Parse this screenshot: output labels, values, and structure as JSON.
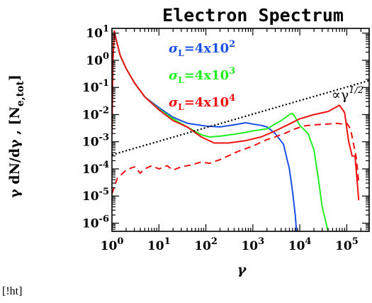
{
  "caption": "[!ht]",
  "chart_data": {
    "type": "line",
    "title": "Electron Spectrum",
    "xlabel": "γ",
    "ylabel": "γ dN/dγ , [N",
    "ylabel_sub": "e,tot",
    "ylabel_close": "]",
    "xscale": "log",
    "yscale": "log",
    "xlim": [
      1,
      300000
    ],
    "ylim": [
      5e-07,
      15
    ],
    "x_ticks": [
      {
        "value": 1,
        "mantissa": "10",
        "exp": "0"
      },
      {
        "value": 10,
        "mantissa": "10",
        "exp": "1"
      },
      {
        "value": 100,
        "mantissa": "10",
        "exp": "2"
      },
      {
        "value": 1000,
        "mantissa": "10",
        "exp": "3"
      },
      {
        "value": 10000,
        "mantissa": "10",
        "exp": "4"
      },
      {
        "value": 100000,
        "mantissa": "10",
        "exp": "5"
      }
    ],
    "y_ticks": [
      {
        "value": 10,
        "mantissa": "10",
        "exp": "1"
      },
      {
        "value": 1,
        "mantissa": "10",
        "exp": "0"
      },
      {
        "value": 0.1,
        "mantissa": "10",
        "exp": "-1"
      },
      {
        "value": 0.01,
        "mantissa": "10",
        "exp": "-2"
      },
      {
        "value": 0.001,
        "mantissa": "10",
        "exp": "-3"
      },
      {
        "value": 0.0001,
        "mantissa": "10",
        "exp": "-4"
      },
      {
        "value": 1e-05,
        "mantissa": "10",
        "exp": "-5"
      },
      {
        "value": 1e-06,
        "mantissa": "10",
        "exp": "-6"
      }
    ],
    "legend": [
      {
        "label": "σ",
        "sub": "L",
        "text": "=4x10",
        "exp": "2",
        "color": "#1a50e6"
      },
      {
        "label": "σ",
        "sub": "L",
        "text": "=4x10",
        "exp": "3",
        "color": "#22ee22"
      },
      {
        "label": "σ",
        "sub": "L",
        "text": "=4x10",
        "exp": "4",
        "color": "#ee1111"
      }
    ],
    "annotation": {
      "text": "∝γ",
      "exp": "1/2"
    },
    "series": [
      {
        "color": "#1a50e6",
        "style": "solid",
        "points": [
          [
            1,
            0.002
          ],
          [
            1.05,
            1
          ],
          [
            1.12,
            12
          ],
          [
            1.2,
            7
          ],
          [
            1.5,
            1.5
          ],
          [
            2,
            0.5
          ],
          [
            3,
            0.15
          ],
          [
            5,
            0.045
          ],
          [
            10,
            0.018
          ],
          [
            20,
            0.008
          ],
          [
            40,
            0.0048
          ],
          [
            100,
            0.0038
          ],
          [
            200,
            0.0035
          ],
          [
            400,
            0.0042
          ],
          [
            700,
            0.005
          ],
          [
            1000,
            0.0045
          ],
          [
            1500,
            0.004
          ],
          [
            2000,
            0.0035
          ],
          [
            3000,
            0.002
          ],
          [
            4500,
            0.0008
          ],
          [
            6000,
            0.0001
          ],
          [
            7000,
            1.5e-05
          ],
          [
            8000,
            2e-06
          ],
          [
            8500,
            5e-07
          ]
        ]
      },
      {
        "color": "#22ee22",
        "style": "solid",
        "points": [
          [
            1,
            0.002
          ],
          [
            1.05,
            1
          ],
          [
            1.12,
            12
          ],
          [
            1.2,
            7
          ],
          [
            1.5,
            1.5
          ],
          [
            2,
            0.5
          ],
          [
            3,
            0.15
          ],
          [
            5,
            0.045
          ],
          [
            10,
            0.016
          ],
          [
            20,
            0.007
          ],
          [
            40,
            0.0035
          ],
          [
            80,
            0.0018
          ],
          [
            120,
            0.0015
          ],
          [
            200,
            0.0016
          ],
          [
            400,
            0.0019
          ],
          [
            700,
            0.0022
          ],
          [
            1000,
            0.0025
          ],
          [
            2000,
            0.003
          ],
          [
            4000,
            0.006
          ],
          [
            6000,
            0.01
          ],
          [
            7000,
            0.011
          ],
          [
            8000,
            0.008
          ],
          [
            10000,
            0.004
          ],
          [
            15000,
            0.002
          ],
          [
            20000,
            0.0005
          ],
          [
            25000,
            4e-05
          ],
          [
            30000,
            4e-06
          ],
          [
            40000,
            5e-07
          ]
        ]
      },
      {
        "color": "#ee1111",
        "style": "solid",
        "points": [
          [
            1,
            0.002
          ],
          [
            1.05,
            1
          ],
          [
            1.12,
            12
          ],
          [
            1.2,
            7
          ],
          [
            1.5,
            1.5
          ],
          [
            2,
            0.5
          ],
          [
            3,
            0.15
          ],
          [
            5,
            0.045
          ],
          [
            10,
            0.015
          ],
          [
            20,
            0.006
          ],
          [
            40,
            0.0035
          ],
          [
            80,
            0.0015
          ],
          [
            150,
            0.0009
          ],
          [
            300,
            0.0009
          ],
          [
            700,
            0.0011
          ],
          [
            1500,
            0.0015
          ],
          [
            3000,
            0.0025
          ],
          [
            6000,
            0.0045
          ],
          [
            10000,
            0.007
          ],
          [
            20000,
            0.01
          ],
          [
            40000,
            0.013
          ],
          [
            70000,
            0.022
          ],
          [
            90000,
            0.012
          ],
          [
            110000,
            0.001
          ],
          [
            130000,
            0.0003
          ],
          [
            150000,
            0.0003
          ],
          [
            180000,
            7e-06
          ]
        ]
      },
      {
        "color": "#ee1111",
        "style": "dashed",
        "points": [
          [
            1,
            1.2e-05
          ],
          [
            1.3,
            4.5e-05
          ],
          [
            2,
            9e-05
          ],
          [
            3,
            0.00012
          ],
          [
            4,
            7e-05
          ],
          [
            5,
            0.0001
          ],
          [
            7,
            0.00013
          ],
          [
            10,
            0.0001
          ],
          [
            15,
            0.00013
          ],
          [
            20,
            9e-05
          ],
          [
            30,
            0.00012
          ],
          [
            50,
            0.00014
          ],
          [
            80,
            0.00018
          ],
          [
            120,
            0.00016
          ],
          [
            200,
            0.00022
          ],
          [
            300,
            0.0003
          ],
          [
            500,
            0.00045
          ],
          [
            800,
            0.0006
          ],
          [
            1200,
            0.0008
          ],
          [
            2000,
            0.0012
          ],
          [
            3000,
            0.0015
          ],
          [
            5000,
            0.0021
          ],
          [
            8000,
            0.003
          ],
          [
            12000,
            0.0038
          ],
          [
            20000,
            0.0042
          ],
          [
            40000,
            0.0045
          ],
          [
            60000,
            0.0048
          ],
          [
            80000,
            0.0045
          ],
          [
            100000,
            0.0048
          ],
          [
            120000,
            0.003
          ],
          [
            140000,
            0.0008
          ],
          [
            160000,
            0.00025
          ],
          [
            180000,
            3e-05
          ]
        ]
      },
      {
        "color": "#000000",
        "style": "dotted",
        "points": [
          [
            1,
            0.00033
          ],
          [
            300000,
            0.18
          ]
        ]
      }
    ]
  }
}
